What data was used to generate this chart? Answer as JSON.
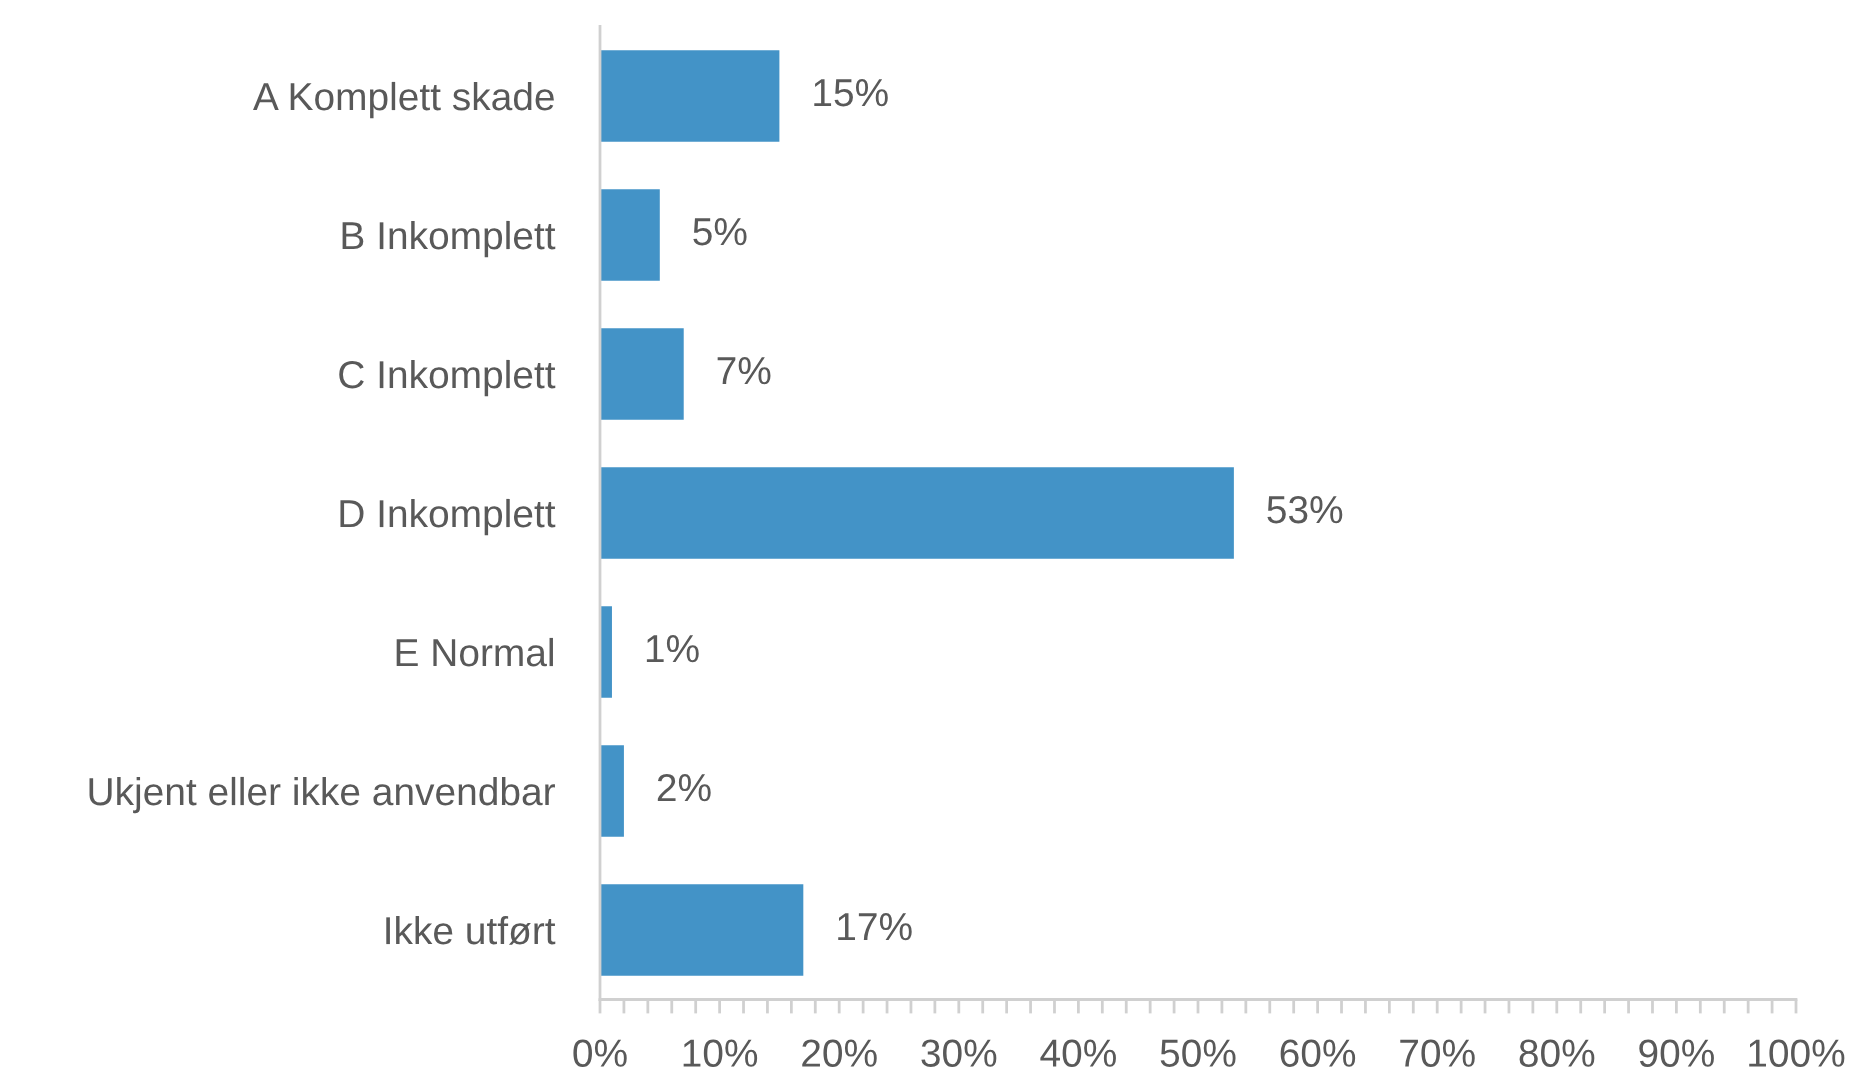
{
  "chart_data": {
    "type": "bar",
    "orientation": "horizontal",
    "categories": [
      "A Komplett skade",
      "B Inkomplett",
      "C Inkomplett",
      "D Inkomplett",
      "E Normal",
      "Ukjent eller ikke anvendbar",
      "Ikke utført"
    ],
    "values": [
      15,
      5,
      7,
      53,
      1,
      2,
      17
    ],
    "value_labels": [
      "15%",
      "5%",
      "7%",
      "53%",
      "1%",
      "2%",
      "17%"
    ],
    "color": "#4393c7",
    "xlim": [
      0,
      100
    ],
    "xticks": [
      {
        "value": 0,
        "label": "0%"
      },
      {
        "value": 2,
        "label": null
      },
      {
        "value": 4,
        "label": null
      },
      {
        "value": 6,
        "label": null
      },
      {
        "value": 8,
        "label": null
      },
      {
        "value": 10,
        "label": "10%"
      },
      {
        "value": 12,
        "label": null
      },
      {
        "value": 14,
        "label": null
      },
      {
        "value": 16,
        "label": null
      },
      {
        "value": 18,
        "label": null
      },
      {
        "value": 20,
        "label": "20%"
      },
      {
        "value": 22,
        "label": null
      },
      {
        "value": 24,
        "label": null
      },
      {
        "value": 26,
        "label": null
      },
      {
        "value": 28,
        "label": null
      },
      {
        "value": 30,
        "label": "30%"
      },
      {
        "value": 32,
        "label": null
      },
      {
        "value": 34,
        "label": null
      },
      {
        "value": 36,
        "label": null
      },
      {
        "value": 38,
        "label": null
      },
      {
        "value": 40,
        "label": "40%"
      },
      {
        "value": 42,
        "label": null
      },
      {
        "value": 44,
        "label": null
      },
      {
        "value": 46,
        "label": null
      },
      {
        "value": 48,
        "label": null
      },
      {
        "value": 50,
        "label": "50%"
      },
      {
        "value": 52,
        "label": null
      },
      {
        "value": 54,
        "label": null
      },
      {
        "value": 56,
        "label": null
      },
      {
        "value": 58,
        "label": null
      },
      {
        "value": 60,
        "label": "60%"
      },
      {
        "value": 62,
        "label": null
      },
      {
        "value": 64,
        "label": null
      },
      {
        "value": 66,
        "label": null
      },
      {
        "value": 68,
        "label": null
      },
      {
        "value": 70,
        "label": "70%"
      },
      {
        "value": 72,
        "label": null
      },
      {
        "value": 74,
        "label": null
      },
      {
        "value": 76,
        "label": null
      },
      {
        "value": 78,
        "label": null
      },
      {
        "value": 80,
        "label": "80%"
      },
      {
        "value": 82,
        "label": null
      },
      {
        "value": 84,
        "label": null
      },
      {
        "value": 86,
        "label": null
      },
      {
        "value": 88,
        "label": null
      },
      {
        "value": 90,
        "label": "90%"
      },
      {
        "value": 92,
        "label": null
      },
      {
        "value": 94,
        "label": null
      },
      {
        "value": 96,
        "label": null
      },
      {
        "value": 98,
        "label": null
      },
      {
        "value": 100,
        "label": "100%"
      }
    ]
  }
}
